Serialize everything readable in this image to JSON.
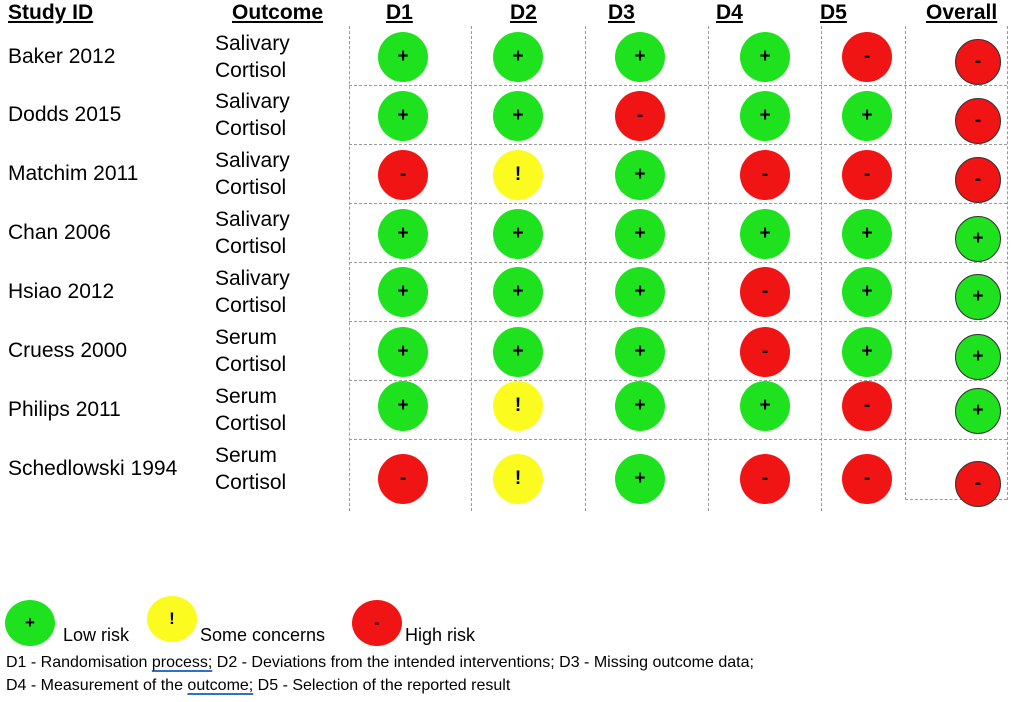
{
  "headers": {
    "study_id": "Study ID",
    "outcome": "Outcome",
    "domains": [
      "D1",
      "D2",
      "D3",
      "D4",
      "D5"
    ],
    "overall": "Overall"
  },
  "studies": [
    {
      "id": "Baker 2012",
      "outcome_line1": "Salivary",
      "outcome_line2": "Cortisol",
      "judgements": [
        "+",
        "+",
        "+",
        "+",
        "-"
      ],
      "overall": "-"
    },
    {
      "id": "Dodds 2015",
      "outcome_line1": "Salivary",
      "outcome_line2": "Cortisol",
      "judgements": [
        "+",
        "+",
        "-",
        "+",
        "+"
      ],
      "overall": "-"
    },
    {
      "id": "Matchim 2011",
      "outcome_line1": "Salivary",
      "outcome_line2": "Cortisol",
      "judgements": [
        "-",
        "!",
        "+",
        "-",
        "-"
      ],
      "overall": "-"
    },
    {
      "id": "Chan 2006",
      "outcome_line1": "Salivary",
      "outcome_line2": "Cortisol",
      "judgements": [
        "+",
        "+",
        "+",
        "+",
        "+"
      ],
      "overall": "+"
    },
    {
      "id": "Hsiao 2012",
      "outcome_line1": "Salivary",
      "outcome_line2": "Cortisol",
      "judgements": [
        "+",
        "+",
        "+",
        "-",
        "+"
      ],
      "overall": "+"
    },
    {
      "id": "Cruess 2000",
      "outcome_line1": "Serum",
      "outcome_line2": "Cortisol",
      "judgements": [
        "+",
        "+",
        "+",
        "-",
        "+"
      ],
      "overall": "+"
    },
    {
      "id": "Philips 2011",
      "outcome_line1": "Serum",
      "outcome_line2": "Cortisol",
      "judgements": [
        "+",
        "!",
        "+",
        "+",
        "-"
      ],
      "overall": "+"
    },
    {
      "id": "Schedlowski 1994",
      "outcome_line1": "Serum",
      "outcome_line2": "Cortisol",
      "judgements": [
        "-",
        "!",
        "+",
        "-",
        "-"
      ],
      "overall": "-"
    }
  ],
  "legend": {
    "low": {
      "symbol": "+",
      "label": "Low risk"
    },
    "some": {
      "symbol": "!",
      "label": "Some concerns"
    },
    "high": {
      "symbol": "-",
      "label": "High risk"
    }
  },
  "notes": {
    "line1_a": "D1 - Randomisation ",
    "line1_b": "process;",
    "line1_c": " D2 - Deviations from the intended interventions; D3 - Missing outcome data;",
    "line2_a": "D4 - Measurement of the ",
    "line2_b": "outcome;",
    "line2_c": "  D5 - Selection of the reported result"
  },
  "colors": {
    "low": "#1ee21e",
    "some": "#fbfb1f",
    "high": "#f01414"
  }
}
